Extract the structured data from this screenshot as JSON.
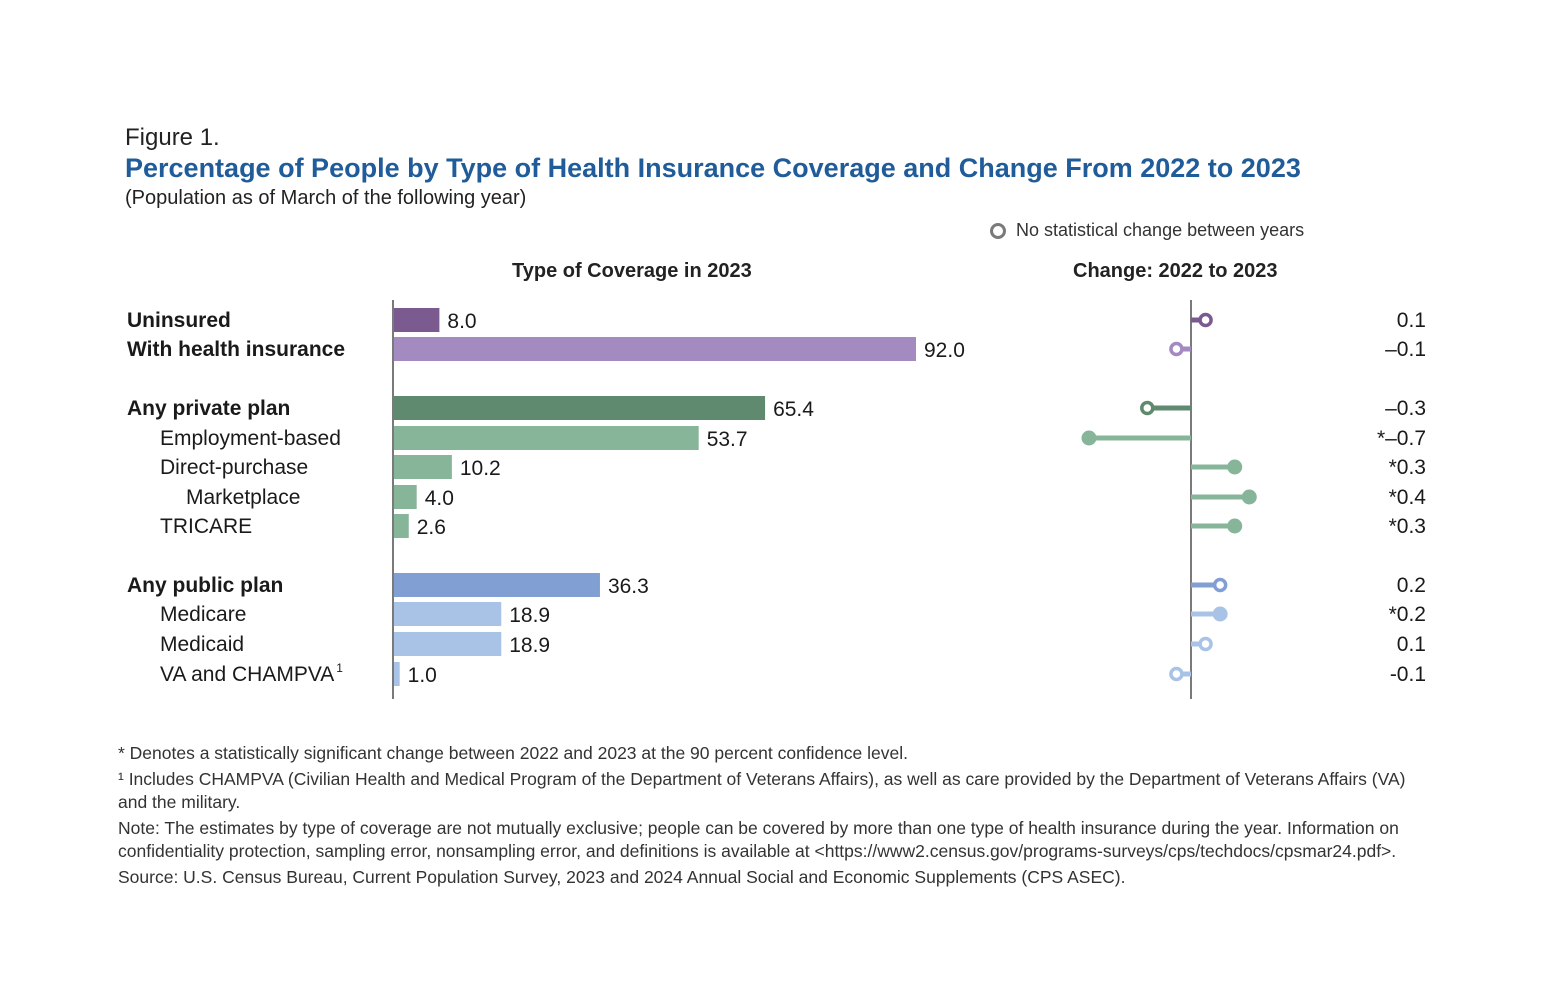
{
  "figure_label": "Figure 1.",
  "title": "Percentage of People by Type of Health Insurance Coverage and Change From 2022 to 2023",
  "subtitle": "(Population as of March of the following year)",
  "legend": {
    "ring_label": "No statistical change between years",
    "ring_icon": "open-circle-icon"
  },
  "panels": {
    "left_title": "Type of Coverage in 2023",
    "right_title": "Change: 2022 to 2023"
  },
  "chart_data": [
    {
      "type": "bar",
      "orientation": "horizontal",
      "title": "Type of Coverage in 2023",
      "categories": [
        "Uninsured",
        "With health insurance",
        "Any private plan",
        "Employment-based",
        "Direct-purchase",
        "Marketplace",
        "TRICARE",
        "Any public plan",
        "Medicare",
        "Medicaid",
        "VA and CHAMPVA"
      ],
      "values": [
        8.0,
        92.0,
        65.4,
        53.7,
        10.2,
        4.0,
        2.6,
        36.3,
        18.9,
        18.9,
        1.0
      ],
      "value_labels": [
        "8.0",
        "92.0",
        "65.4",
        "53.7",
        "10.2",
        "4.0",
        "2.6",
        "36.3",
        "18.9",
        "18.9",
        "1.0"
      ],
      "xlim": [
        0,
        100
      ]
    },
    {
      "type": "scatter",
      "style": "lollipop",
      "title": "Change: 2022 to 2023",
      "categories": [
        "Uninsured",
        "With health insurance",
        "Any private plan",
        "Employment-based",
        "Direct-purchase",
        "Marketplace",
        "TRICARE",
        "Any public plan",
        "Medicare",
        "Medicaid",
        "VA and CHAMPVA"
      ],
      "values": [
        0.1,
        -0.1,
        -0.3,
        -0.7,
        0.3,
        0.4,
        0.3,
        0.2,
        0.2,
        0.1,
        -0.1
      ],
      "value_labels": [
        "0.1",
        "–0.1",
        "–0.3",
        "*–0.7",
        "*0.3",
        "*0.4",
        "*0.3",
        "0.2",
        "*0.2",
        "0.1",
        "-0.1"
      ],
      "significant": [
        false,
        false,
        false,
        true,
        true,
        true,
        true,
        false,
        true,
        false,
        false
      ],
      "xlim": [
        -0.8,
        0.6
      ]
    }
  ],
  "rows": [
    {
      "label": "Uninsured",
      "sup": "",
      "bold": true,
      "indent": 0,
      "color": "#7b5a90"
    },
    {
      "label": "With health insurance",
      "sup": "",
      "bold": true,
      "indent": 0,
      "color": "#a38ac1"
    },
    {
      "label": "Any private plan",
      "sup": "",
      "bold": true,
      "indent": 0,
      "color": "#5f8a6f"
    },
    {
      "label": "Employment-based",
      "sup": "",
      "bold": false,
      "indent": 1,
      "color": "#87b59a"
    },
    {
      "label": "Direct-purchase",
      "sup": "",
      "bold": false,
      "indent": 1,
      "color": "#87b59a"
    },
    {
      "label": "Marketplace",
      "sup": "",
      "bold": false,
      "indent": 2,
      "color": "#87b59a"
    },
    {
      "label": "TRICARE",
      "sup": "",
      "bold": false,
      "indent": 1,
      "color": "#87b59a"
    },
    {
      "label": "Any public plan",
      "sup": "",
      "bold": true,
      "indent": 0,
      "color": "#819fd3"
    },
    {
      "label": "Medicare",
      "sup": "",
      "bold": false,
      "indent": 1,
      "color": "#a8c3e6"
    },
    {
      "label": "Medicaid",
      "sup": "",
      "bold": false,
      "indent": 1,
      "color": "#a8c3e6"
    },
    {
      "label": "VA and CHAMPVA",
      "sup": "1",
      "bold": false,
      "indent": 1,
      "color": "#a8c3e6"
    }
  ],
  "notes": {
    "significance": "* Denotes a statistically significant change between 2022 and 2023 at the 90 percent confidence level.",
    "footnote_1": "¹ Includes CHAMPVA (Civilian Health and Medical Program of the Department of Veterans Affairs), as well as care provided by the Department of Veterans Affairs (VA) and the military.",
    "note": "Note: The estimates by type of coverage are not mutually exclusive; people can be covered by more than one type of health insurance during the year. Information on confidentiality protection, sampling error, nonsampling error, and definitions is available at <https://www2.census.gov/programs-surveys/cps/techdocs/cpsmar24.pdf>.",
    "source": "Source: U.S. Census Bureau, Current Population Survey, 2023 and 2024 Annual Social and Economic Supplements (CPS ASEC)."
  }
}
